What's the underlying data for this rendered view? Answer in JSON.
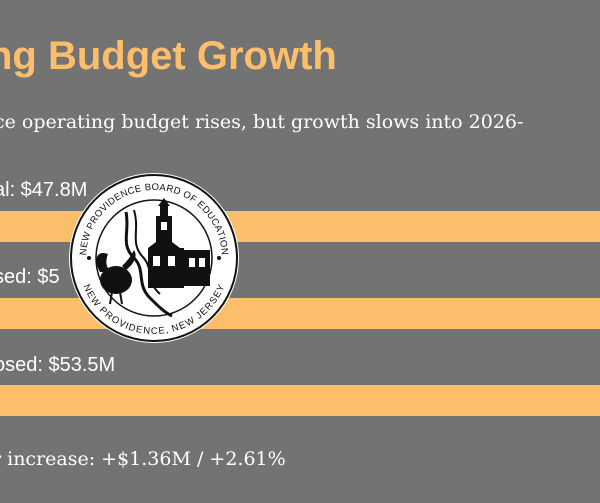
{
  "slide": {
    "title": "ng Budget Growth",
    "subtitle": "ce operating budget rises, but growth slows into 2026-",
    "bars": [
      {
        "label": "al: $47.8M",
        "value": 1.0
      },
      {
        "label": "sed: $5",
        "value": 1.0
      },
      {
        "label": "osed: $53.5M",
        "value": 1.0
      }
    ],
    "footer": "r increase: +$1.36M / +2.61%"
  },
  "seal": {
    "top_text": "NEW PROVIDENCE BOARD OF EDUCATION",
    "bottom_text": "NEW PROVIDENCE, NEW JERSEY"
  },
  "colors": {
    "background": "#737373",
    "accent": "#fdbe6c",
    "text": "#ffffff"
  }
}
